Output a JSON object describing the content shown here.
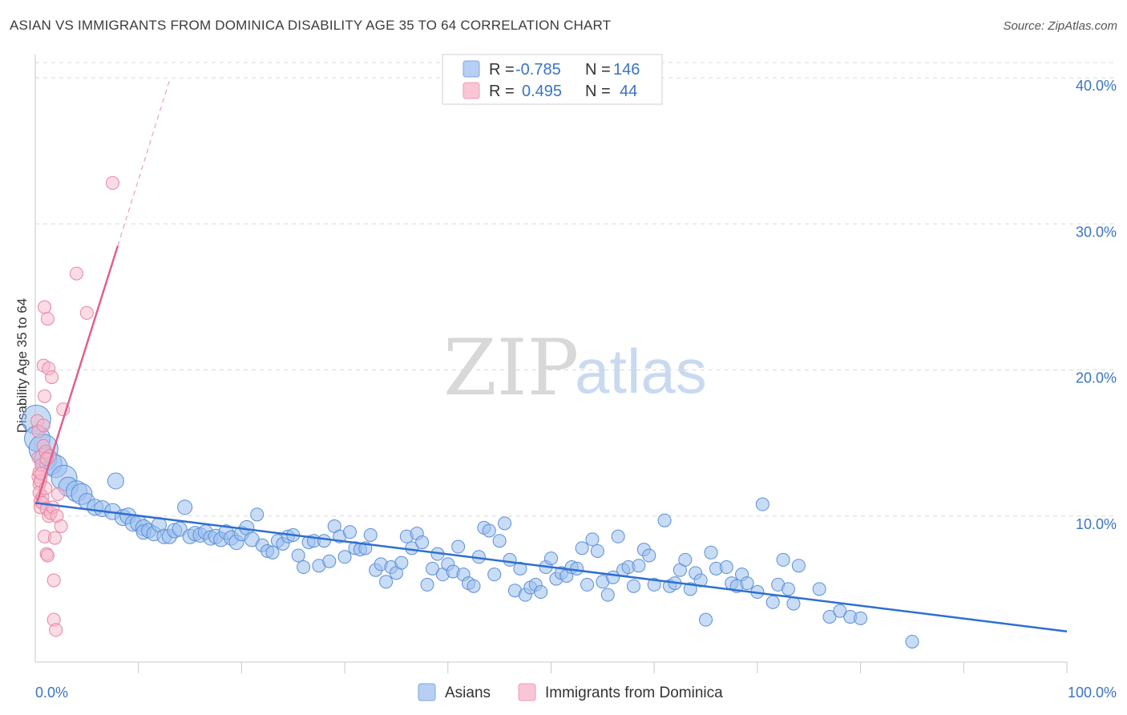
{
  "header": {
    "title": "ASIAN VS IMMIGRANTS FROM DOMINICA DISABILITY AGE 35 TO 64 CORRELATION CHART",
    "source": "Source: ZipAtlas.com"
  },
  "watermark": {
    "zip": "ZIP",
    "atlas": "atlas"
  },
  "legend": {
    "rows": [
      {
        "r_label": "R =",
        "r_value": "-0.785",
        "n_label": "N =",
        "n_value": "146",
        "color": "#7aa7e6"
      },
      {
        "r_label": "R =",
        "r_value": "0.495",
        "n_label": "N =",
        "n_value": "44",
        "color": "#f09ab5"
      }
    ]
  },
  "bottom_legend": {
    "asians": "Asians",
    "dominica": "Immigrants from Dominica"
  },
  "colors": {
    "asian_fill": "#9dc0ee",
    "asian_stroke": "#5b8fd8",
    "asian_line": "#2e6fd0",
    "dominica_fill": "#f7b8cb",
    "dominica_stroke": "#e6869f",
    "dominica_line": "#e0608c",
    "grid": "#d9d9d9",
    "axis_text": "#3a73c6"
  },
  "chart_data": {
    "type": "scatter",
    "title": "ASIAN VS IMMIGRANTS FROM DOMINICA DISABILITY AGE 35 TO 64 CORRELATION CHART",
    "xlabel": "",
    "ylabel": "Disability Age 35 to 64",
    "xlim": [
      0,
      100
    ],
    "ylim": [
      0,
      41
    ],
    "x_tick_labels": [
      "0.0%",
      "100.0%"
    ],
    "y_ticks": [
      10,
      20,
      30,
      40
    ],
    "y_tick_labels": [
      "10.0%",
      "20.0%",
      "30.0%",
      "40.0%"
    ],
    "grid": true,
    "series": [
      {
        "name": "Asians",
        "R": -0.785,
        "N": 146,
        "trend": {
          "x": [
            0,
            100
          ],
          "y": [
            10.9,
            2.1
          ]
        },
        "points": [
          [
            0.1,
            16.6,
            1.8
          ],
          [
            0.2,
            15.3,
            1.6
          ],
          [
            0.8,
            14.6,
            1.8
          ],
          [
            1.0,
            13.9,
            1.4
          ],
          [
            1.5,
            13.6,
            1.4
          ],
          [
            2.0,
            13.4,
            1.4
          ],
          [
            2.8,
            12.6,
            1.6
          ],
          [
            3.2,
            12.0,
            1.2
          ],
          [
            4.0,
            11.7,
            1.3
          ],
          [
            4.5,
            11.5,
            1.3
          ],
          [
            5.0,
            11.0,
            1.0
          ],
          [
            5.8,
            10.6,
            1.0
          ],
          [
            6.5,
            10.5,
            1.0
          ],
          [
            7.5,
            10.3,
            1.0
          ],
          [
            7.8,
            12.4,
            1.0
          ],
          [
            8.5,
            9.9,
            1.0
          ],
          [
            9.0,
            10.0,
            1.0
          ],
          [
            9.5,
            9.5,
            1.0
          ],
          [
            10.0,
            9.5,
            1.0
          ],
          [
            10.5,
            9.2,
            1.0
          ],
          [
            10.5,
            8.9,
            0.9
          ],
          [
            11.0,
            9.0,
            0.9
          ],
          [
            11.5,
            8.8,
            0.9
          ],
          [
            12.0,
            9.4,
            0.9
          ],
          [
            12.5,
            8.6,
            0.9
          ],
          [
            13.0,
            8.6,
            0.9
          ],
          [
            13.5,
            9.0,
            0.9
          ],
          [
            14.0,
            9.1,
            0.9
          ],
          [
            14.5,
            10.6,
            0.9
          ],
          [
            15.0,
            8.6,
            0.9
          ],
          [
            15.5,
            8.8,
            0.9
          ],
          [
            16.0,
            8.7,
            0.9
          ],
          [
            16.5,
            8.9,
            0.9
          ],
          [
            17.0,
            8.5,
            0.9
          ],
          [
            17.5,
            8.6,
            0.9
          ],
          [
            18.0,
            8.4,
            0.9
          ],
          [
            18.5,
            8.9,
            0.9
          ],
          [
            19.0,
            8.5,
            0.9
          ],
          [
            19.5,
            8.2,
            0.9
          ],
          [
            20.0,
            8.8,
            0.9
          ],
          [
            20.5,
            9.2,
            0.9
          ],
          [
            21.0,
            8.4,
            0.9
          ],
          [
            21.5,
            10.1,
            0.8
          ],
          [
            22.0,
            8.0,
            0.8
          ],
          [
            22.5,
            7.6,
            0.8
          ],
          [
            23.0,
            7.5,
            0.8
          ],
          [
            23.5,
            8.3,
            0.8
          ],
          [
            24.0,
            8.1,
            0.8
          ],
          [
            24.5,
            8.6,
            0.8
          ],
          [
            25.0,
            8.7,
            0.8
          ],
          [
            25.5,
            7.3,
            0.8
          ],
          [
            26.0,
            6.5,
            0.8
          ],
          [
            26.5,
            8.2,
            0.8
          ],
          [
            27.0,
            8.3,
            0.8
          ],
          [
            27.5,
            6.6,
            0.8
          ],
          [
            28.0,
            8.3,
            0.8
          ],
          [
            28.5,
            6.9,
            0.8
          ],
          [
            29.0,
            9.3,
            0.8
          ],
          [
            29.5,
            8.6,
            0.8
          ],
          [
            30.0,
            7.2,
            0.8
          ],
          [
            30.5,
            8.9,
            0.8
          ],
          [
            31.0,
            7.8,
            0.8
          ],
          [
            31.5,
            7.7,
            0.8
          ],
          [
            32.0,
            7.8,
            0.8
          ],
          [
            32.5,
            8.7,
            0.8
          ],
          [
            33.0,
            6.3,
            0.8
          ],
          [
            33.5,
            6.7,
            0.8
          ],
          [
            34.0,
            5.5,
            0.8
          ],
          [
            34.5,
            6.5,
            0.8
          ],
          [
            35.0,
            6.1,
            0.8
          ],
          [
            35.5,
            6.8,
            0.8
          ],
          [
            36.0,
            8.6,
            0.8
          ],
          [
            36.5,
            7.8,
            0.8
          ],
          [
            37.0,
            8.8,
            0.8
          ],
          [
            37.5,
            8.2,
            0.8
          ],
          [
            38.0,
            5.3,
            0.8
          ],
          [
            38.5,
            6.4,
            0.8
          ],
          [
            39.0,
            7.4,
            0.8
          ],
          [
            39.5,
            6.0,
            0.8
          ],
          [
            40.0,
            6.7,
            0.8
          ],
          [
            40.5,
            6.2,
            0.8
          ],
          [
            41.0,
            7.9,
            0.8
          ],
          [
            41.5,
            6.0,
            0.8
          ],
          [
            42.0,
            5.4,
            0.8
          ],
          [
            42.5,
            5.2,
            0.8
          ],
          [
            43.0,
            7.2,
            0.8
          ],
          [
            43.5,
            9.2,
            0.8
          ],
          [
            44.0,
            9.0,
            0.8
          ],
          [
            44.5,
            6.0,
            0.8
          ],
          [
            45.0,
            8.3,
            0.8
          ],
          [
            45.5,
            9.5,
            0.8
          ],
          [
            46.0,
            7.0,
            0.8
          ],
          [
            46.5,
            4.9,
            0.8
          ],
          [
            47.0,
            6.4,
            0.8
          ],
          [
            47.5,
            4.6,
            0.8
          ],
          [
            48.0,
            5.1,
            0.8
          ],
          [
            48.5,
            5.3,
            0.8
          ],
          [
            49.0,
            4.8,
            0.8
          ],
          [
            49.5,
            6.5,
            0.8
          ],
          [
            50.0,
            7.1,
            0.8
          ],
          [
            50.5,
            5.7,
            0.8
          ],
          [
            51.0,
            6.1,
            0.8
          ],
          [
            51.5,
            5.9,
            0.8
          ],
          [
            52.0,
            6.5,
            0.8
          ],
          [
            52.5,
            6.4,
            0.8
          ],
          [
            53.0,
            7.8,
            0.8
          ],
          [
            53.5,
            5.3,
            0.8
          ],
          [
            54.0,
            8.4,
            0.8
          ],
          [
            54.5,
            7.6,
            0.8
          ],
          [
            55.0,
            5.5,
            0.8
          ],
          [
            55.5,
            4.6,
            0.8
          ],
          [
            56.0,
            5.8,
            0.8
          ],
          [
            56.5,
            8.6,
            0.8
          ],
          [
            57.0,
            6.3,
            0.8
          ],
          [
            57.5,
            6.5,
            0.8
          ],
          [
            58.0,
            5.2,
            0.8
          ],
          [
            58.5,
            6.6,
            0.8
          ],
          [
            59.0,
            7.7,
            0.8
          ],
          [
            59.5,
            7.3,
            0.8
          ],
          [
            60.0,
            5.3,
            0.8
          ],
          [
            61.0,
            9.7,
            0.8
          ],
          [
            61.5,
            5.2,
            0.8
          ],
          [
            62.0,
            5.4,
            0.8
          ],
          [
            62.5,
            6.3,
            0.8
          ],
          [
            63.0,
            7.0,
            0.8
          ],
          [
            63.5,
            5.0,
            0.8
          ],
          [
            64.0,
            6.1,
            0.8
          ],
          [
            64.5,
            5.6,
            0.8
          ],
          [
            65.0,
            2.9,
            0.8
          ],
          [
            65.5,
            7.5,
            0.8
          ],
          [
            66.0,
            6.4,
            0.8
          ],
          [
            67.0,
            6.5,
            0.8
          ],
          [
            67.5,
            5.4,
            0.8
          ],
          [
            68.0,
            5.2,
            0.8
          ],
          [
            68.5,
            6.0,
            0.8
          ],
          [
            69.0,
            5.4,
            0.8
          ],
          [
            70.0,
            4.8,
            0.8
          ],
          [
            70.5,
            10.8,
            0.8
          ],
          [
            71.5,
            4.1,
            0.8
          ],
          [
            72.0,
            5.3,
            0.8
          ],
          [
            72.5,
            7.0,
            0.8
          ],
          [
            73.0,
            5.0,
            0.8
          ],
          [
            73.5,
            4.0,
            0.8
          ],
          [
            74.0,
            6.6,
            0.8
          ],
          [
            76.0,
            5.0,
            0.8
          ],
          [
            77.0,
            3.1,
            0.8
          ],
          [
            78.0,
            3.5,
            0.8
          ],
          [
            79.0,
            3.1,
            0.8
          ],
          [
            80.0,
            3.0,
            0.8
          ],
          [
            85.0,
            1.4,
            0.8
          ]
        ]
      },
      {
        "name": "Immigrants from Dominica",
        "R": 0.495,
        "N": 44,
        "trend": {
          "x": [
            0.2,
            8.0
          ],
          "y": [
            11.0,
            28.5
          ]
        },
        "trend_dashed": {
          "x": [
            8.0,
            13.0
          ],
          "y": [
            28.5,
            39.8
          ]
        },
        "points": [
          [
            0.2,
            16.5,
            0.8
          ],
          [
            0.3,
            15.8,
            0.8
          ],
          [
            0.3,
            14.0,
            0.8
          ],
          [
            0.3,
            12.7,
            0.8
          ],
          [
            0.4,
            13.0,
            0.8
          ],
          [
            0.4,
            12.2,
            0.8
          ],
          [
            0.4,
            11.6,
            0.8
          ],
          [
            0.5,
            11.0,
            0.8
          ],
          [
            0.5,
            10.6,
            0.8
          ],
          [
            0.5,
            12.4,
            0.8
          ],
          [
            0.6,
            13.5,
            0.8
          ],
          [
            0.6,
            12.9,
            0.8
          ],
          [
            0.7,
            11.3,
            0.8
          ],
          [
            0.7,
            10.9,
            0.8
          ],
          [
            0.8,
            14.8,
            0.8
          ],
          [
            0.8,
            16.2,
            0.8
          ],
          [
            0.8,
            20.3,
            0.8
          ],
          [
            0.9,
            18.2,
            0.8
          ],
          [
            0.9,
            8.6,
            0.8
          ],
          [
            0.9,
            24.3,
            0.8
          ],
          [
            1.0,
            14.4,
            0.8
          ],
          [
            1.0,
            11.9,
            0.8
          ],
          [
            1.1,
            7.4,
            0.8
          ],
          [
            1.1,
            10.5,
            0.8
          ],
          [
            1.2,
            7.3,
            0.8
          ],
          [
            1.2,
            23.5,
            0.8
          ],
          [
            1.3,
            10.0,
            0.8
          ],
          [
            1.3,
            20.1,
            0.8
          ],
          [
            1.4,
            14.1,
            0.8
          ],
          [
            1.5,
            10.2,
            0.8
          ],
          [
            1.6,
            19.5,
            0.8
          ],
          [
            1.7,
            10.6,
            0.8
          ],
          [
            1.8,
            5.6,
            0.8
          ],
          [
            1.8,
            2.9,
            0.8
          ],
          [
            1.9,
            8.5,
            0.8
          ],
          [
            2.0,
            2.2,
            0.8
          ],
          [
            2.1,
            10.0,
            0.8
          ],
          [
            2.2,
            11.5,
            0.8
          ],
          [
            2.5,
            9.3,
            0.8
          ],
          [
            2.7,
            17.3,
            0.8
          ],
          [
            4.0,
            26.6,
            0.8
          ],
          [
            5.0,
            23.9,
            0.8
          ],
          [
            7.5,
            32.8,
            0.8
          ],
          [
            1.1,
            13.9,
            0.8
          ]
        ]
      }
    ]
  }
}
